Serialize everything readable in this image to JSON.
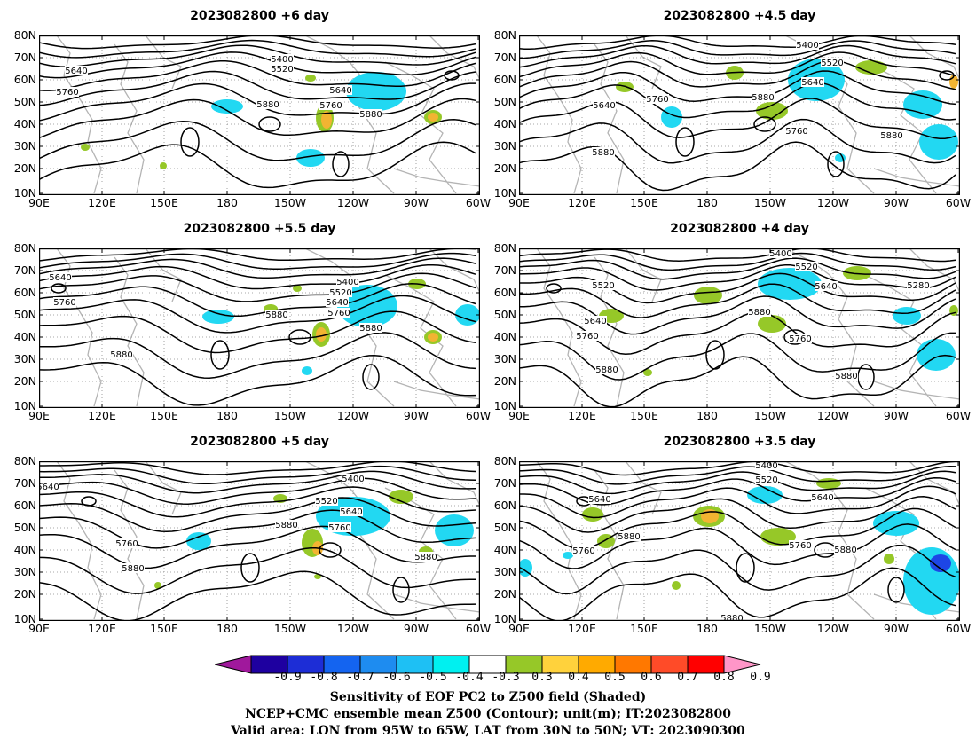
{
  "panels": [
    {
      "title": "2023082800 +6 day",
      "labels": [
        [
          "5400",
          318,
          69
        ],
        [
          "5520",
          318,
          80
        ],
        [
          "5640",
          86,
          82
        ],
        [
          "5760",
          76,
          106
        ],
        [
          "5880",
          302,
          120
        ],
        [
          "5760",
          373,
          121
        ],
        [
          "5640",
          384,
          104
        ],
        [
          "5880",
          418,
          131
        ]
      ],
      "blobs": [
        [
          "b",
          420,
          108,
          28,
          14
        ],
        [
          "c",
          424,
          103,
          34,
          22
        ],
        [
          "c",
          256,
          120,
          18,
          8
        ],
        [
          "c",
          350,
          178,
          16,
          10
        ],
        [
          "g",
          366,
          133,
          10,
          16
        ],
        [
          "o",
          368,
          135,
          6,
          10
        ],
        [
          "g",
          488,
          132,
          10,
          8
        ],
        [
          "o",
          488,
          132,
          6,
          5
        ],
        [
          "g",
          350,
          88,
          6,
          4
        ],
        [
          "g",
          96,
          166,
          5,
          4
        ],
        [
          "g",
          184,
          187,
          4,
          4
        ]
      ]
    },
    {
      "title": "2023082800 +4.5 day",
      "labels": [
        [
          "5400",
          910,
          53
        ],
        [
          "5520",
          938,
          73
        ],
        [
          "5640",
          916,
          95
        ],
        [
          "5760",
          741,
          114
        ],
        [
          "5640",
          681,
          121
        ],
        [
          "5880",
          860,
          112
        ],
        [
          "5760",
          898,
          150
        ],
        [
          "5880",
          1005,
          155
        ],
        [
          "5880",
          680,
          174
        ]
      ],
      "blobs": [
        [
          "b",
          922,
          98,
          22,
          14
        ],
        [
          "c",
          920,
          90,
          32,
          24
        ],
        [
          "c",
          1040,
          118,
          22,
          16
        ],
        [
          "c",
          1058,
          160,
          22,
          20
        ],
        [
          "c",
          757,
          132,
          12,
          12
        ],
        [
          "g",
          828,
          82,
          10,
          8
        ],
        [
          "g",
          982,
          76,
          18,
          8
        ],
        [
          "g",
          870,
          125,
          18,
          10
        ],
        [
          "o",
          1075,
          92,
          5,
          8
        ],
        [
          "g",
          704,
          98,
          10,
          6
        ],
        [
          "c",
          947,
          178,
          6,
          5
        ]
      ]
    },
    {
      "title": "2023082800 +5.5 day",
      "labels": [
        [
          "5640",
          68,
          315
        ],
        [
          "5760",
          73,
          343
        ],
        [
          "5400",
          392,
          320
        ],
        [
          "5520",
          384,
          332
        ],
        [
          "5640",
          380,
          343
        ],
        [
          "5760",
          382,
          355
        ],
        [
          "5880",
          312,
          357
        ],
        [
          "5880",
          418,
          372
        ],
        [
          "5880",
          137,
          402
        ]
      ],
      "blobs": [
        [
          "b",
          416,
          350,
          22,
          14
        ],
        [
          "c",
          414,
          345,
          34,
          24
        ],
        [
          "c",
          246,
          357,
          18,
          8
        ],
        [
          "c",
          527,
          355,
          14,
          12
        ],
        [
          "g",
          362,
          377,
          10,
          14
        ],
        [
          "o",
          362,
          377,
          6,
          8
        ],
        [
          "g",
          488,
          380,
          10,
          8
        ],
        [
          "o",
          488,
          380,
          6,
          5
        ],
        [
          "g",
          305,
          348,
          8,
          5
        ],
        [
          "g",
          470,
          320,
          10,
          6
        ],
        [
          "c",
          346,
          418,
          6,
          5
        ],
        [
          "g",
          335,
          325,
          5,
          4
        ]
      ]
    },
    {
      "title": "2023082800 +4 day",
      "labels": [
        [
          "5400",
          880,
          288
        ],
        [
          "5520",
          909,
          303
        ],
        [
          "5640",
          931,
          325
        ],
        [
          "5520",
          680,
          324
        ],
        [
          "5640",
          671,
          364
        ],
        [
          "5760",
          662,
          381
        ],
        [
          "5880",
          856,
          354
        ],
        [
          "5760",
          902,
          384
        ],
        [
          "5880",
          954,
          426
        ],
        [
          "5280",
          1035,
          324
        ],
        [
          "5880",
          684,
          419
        ]
      ],
      "blobs": [
        [
          "b",
          892,
          322,
          22,
          12
        ],
        [
          "c",
          890,
          320,
          36,
          18
        ],
        [
          "c",
          1055,
          400,
          22,
          18
        ],
        [
          "c",
          1022,
          356,
          16,
          10
        ],
        [
          "g",
          798,
          333,
          16,
          10
        ],
        [
          "g",
          870,
          365,
          16,
          10
        ],
        [
          "g",
          966,
          308,
          16,
          8
        ],
        [
          "g",
          689,
          356,
          14,
          8
        ],
        [
          "g",
          1075,
          350,
          5,
          6
        ],
        [
          "g",
          730,
          420,
          5,
          4
        ]
      ]
    },
    {
      "title": "2023082800 +5 day",
      "labels": [
        [
          "5640",
          54,
          551
        ],
        [
          "5400",
          398,
          542
        ],
        [
          "5520",
          368,
          567
        ],
        [
          "5640",
          396,
          579
        ],
        [
          "5880",
          323,
          594
        ],
        [
          "5760",
          383,
          597
        ],
        [
          "5760",
          143,
          615
        ],
        [
          "5880",
          150,
          643
        ],
        [
          "5880",
          480,
          630
        ]
      ],
      "blobs": [
        [
          "b",
          400,
          584,
          26,
          12
        ],
        [
          "c",
          398,
          582,
          42,
          22
        ],
        [
          "c",
          512,
          598,
          22,
          18
        ],
        [
          "c",
          224,
          610,
          14,
          10
        ],
        [
          "g",
          352,
          612,
          12,
          16
        ],
        [
          "o",
          358,
          618,
          6,
          8
        ],
        [
          "g",
          452,
          560,
          14,
          8
        ],
        [
          "g",
          316,
          562,
          8,
          5
        ],
        [
          "g",
          178,
          660,
          4,
          4
        ],
        [
          "g",
          358,
          650,
          4,
          3
        ],
        [
          "g",
          480,
          622,
          8,
          6
        ]
      ]
    },
    {
      "title": "2023082800 +3.5 day",
      "labels": [
        [
          "5400",
          864,
          527
        ],
        [
          "5520",
          864,
          543
        ],
        [
          "5640",
          927,
          563
        ],
        [
          "5640",
          676,
          565
        ],
        [
          "5880",
          709,
          607
        ],
        [
          "5760",
          658,
          623
        ],
        [
          "5760",
          902,
          617
        ],
        [
          "5880",
          953,
          622
        ],
        [
          "5880",
          825,
          699
        ]
      ],
      "blobs": [
        [
          "c",
          1050,
          655,
          32,
          38
        ],
        [
          "b",
          1060,
          635,
          12,
          10
        ],
        [
          "c",
          1010,
          590,
          26,
          14
        ],
        [
          "c",
          862,
          558,
          20,
          10
        ],
        [
          "c",
          592,
          640,
          8,
          10
        ],
        [
          "g",
          799,
          582,
          18,
          12
        ],
        [
          "o",
          800,
          582,
          10,
          8
        ],
        [
          "g",
          668,
          580,
          12,
          8
        ],
        [
          "g",
          877,
          605,
          20,
          10
        ],
        [
          "g",
          683,
          610,
          10,
          8
        ],
        [
          "g",
          934,
          545,
          14,
          6
        ],
        [
          "g",
          762,
          660,
          5,
          5
        ],
        [
          "g",
          1002,
          630,
          6,
          6
        ],
        [
          "c",
          640,
          626,
          6,
          4
        ]
      ]
    }
  ],
  "lat_labels": [
    "80N",
    "70N",
    "60N",
    "50N",
    "40N",
    "30N",
    "20N",
    "10N"
  ],
  "lon_labels": [
    "90E",
    "120E",
    "150E",
    "180",
    "150W",
    "120W",
    "90W",
    "60W"
  ],
  "colorbar": {
    "colors": [
      "#a0189c",
      "#1e00a0",
      "#1d2dd6",
      "#1464f0",
      "#1e8cf0",
      "#1ec0f4",
      "#00f0f0",
      "#ffffff",
      "#96c828",
      "#ffd23c",
      "#ffaa00",
      "#ff7800",
      "#ff4b28",
      "#ff0000",
      "#ff96c8"
    ],
    "labels": [
      "-0.9",
      "-0.8",
      "-0.7",
      "-0.6",
      "-0.5",
      "-0.4",
      "-0.3",
      "0.3",
      "0.4",
      "0.5",
      "0.6",
      "0.7",
      "0.8",
      "0.9"
    ]
  },
  "caption": {
    "line1": "Sensitivity of EOF PC2 to Z500 field (Shaded)",
    "line2": "NCEP+CMC ensemble mean Z500 (Contour); unit(m); IT:2023082800",
    "line3": "Valid area: LON from 95W to 65W, LAT from 30N to 50N; VT: 2023090300"
  }
}
